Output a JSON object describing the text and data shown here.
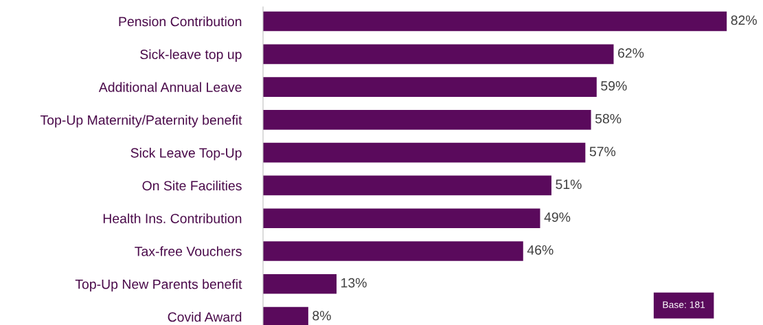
{
  "chart_data": {
    "type": "bar",
    "orientation": "horizontal",
    "categories": [
      "Pension Contribution",
      "Sick-leave top up",
      "Additional Annual Leave",
      "Top-Up Maternity/Paternity benefit",
      "Sick Leave Top-Up",
      "On Site Facilities",
      "Health Ins. Contribution",
      "Tax-free Vouchers",
      "Top-Up New Parents benefit",
      "Covid Award"
    ],
    "values": [
      82,
      62,
      59,
      58,
      57,
      51,
      49,
      46,
      13,
      8
    ],
    "value_labels": [
      "82%",
      "62%",
      "59%",
      "58%",
      "57%",
      "51%",
      "49%",
      "46%",
      "13%",
      "8%"
    ],
    "color": "#5a0a5c",
    "tick_labels": "y",
    "grid": false,
    "legend": false,
    "annotations": [
      "Base: 181"
    ]
  }
}
